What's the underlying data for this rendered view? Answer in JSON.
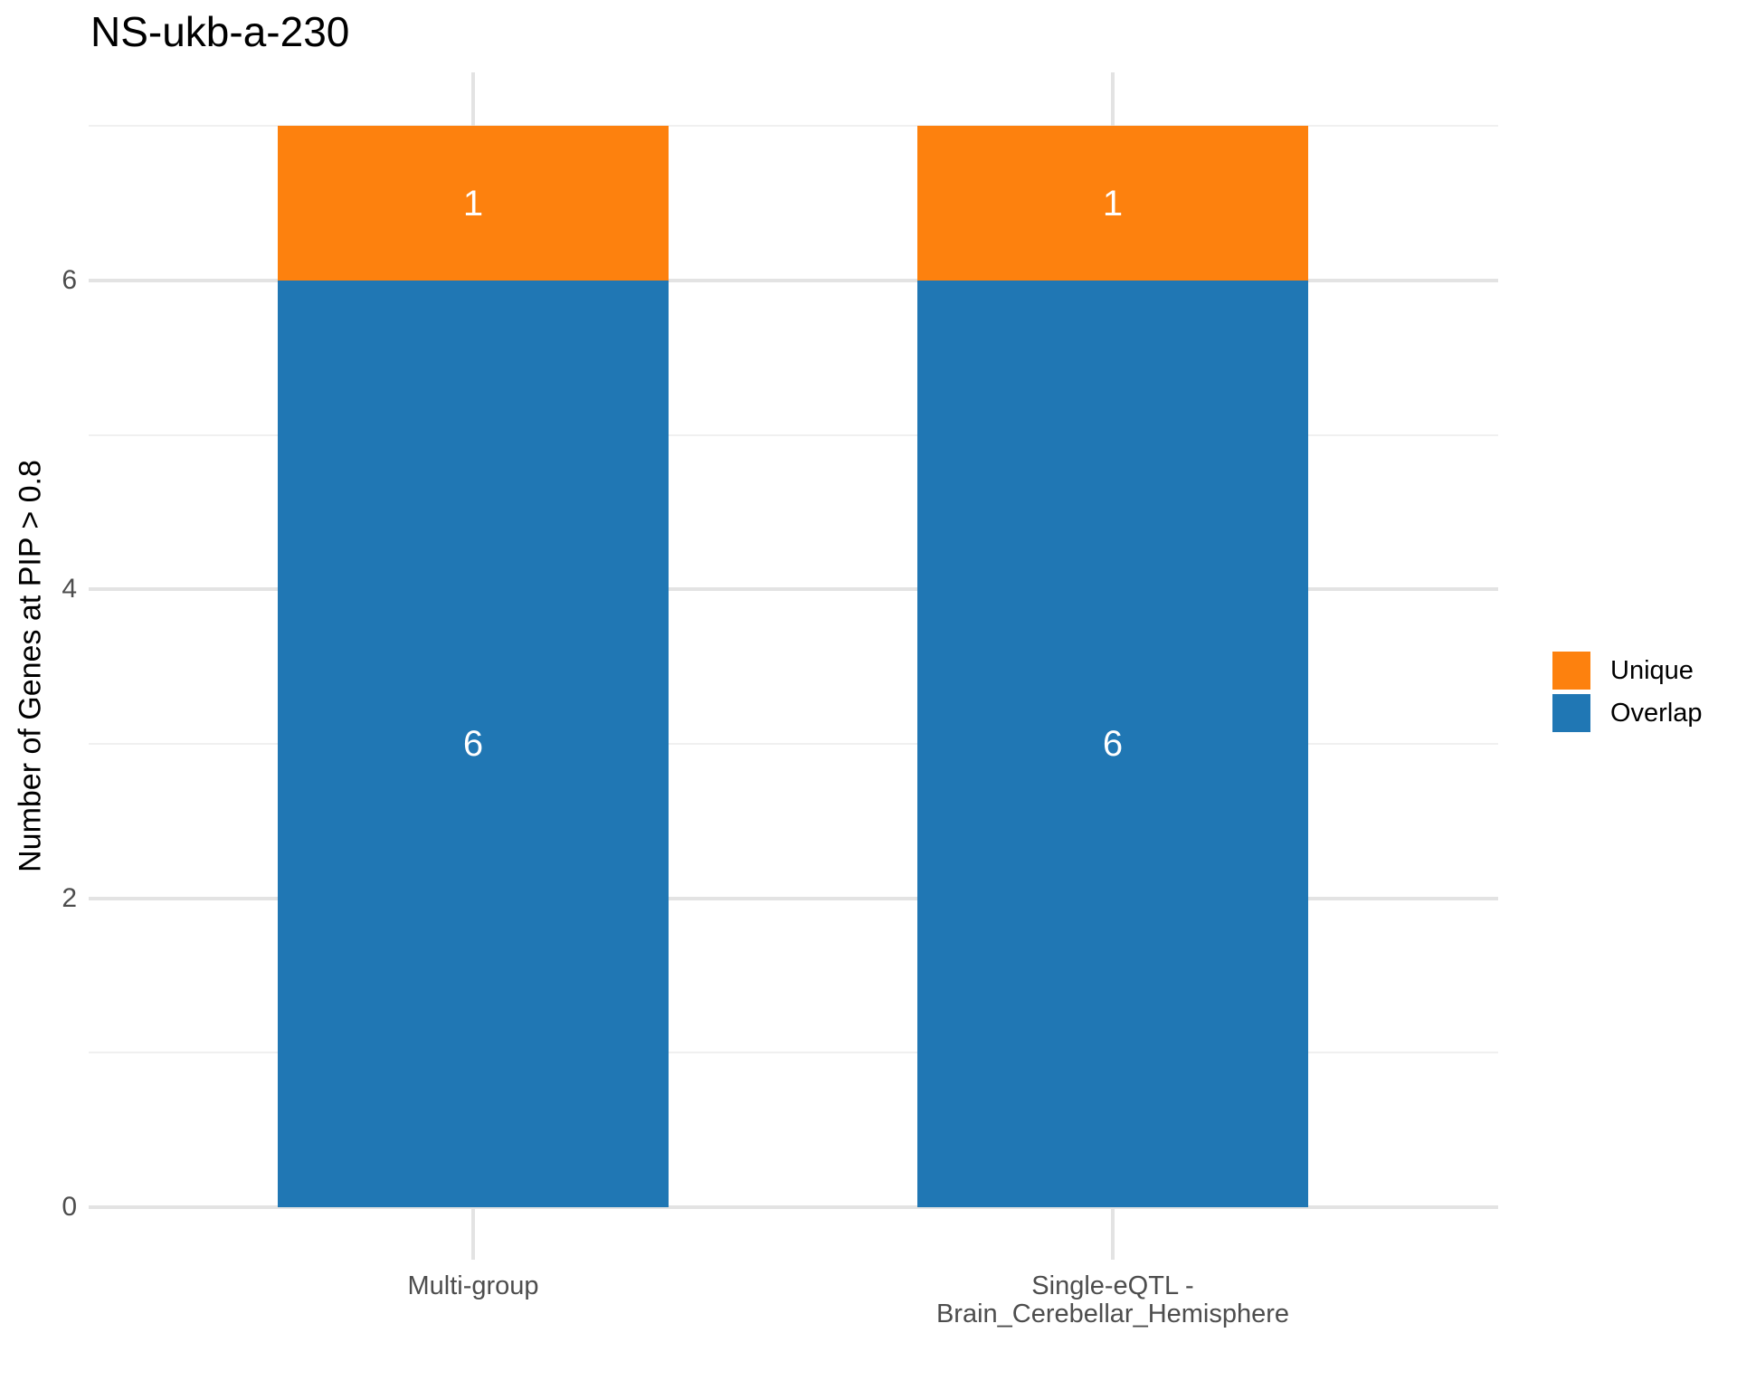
{
  "title": "NS-ukb-a-230",
  "colors": {
    "unique_orange": "#FD810E",
    "overlap_blue": "#2077B4",
    "grid_major": "#E3E3E3",
    "grid_minor": "#F0F0F0",
    "axis_text": "#4D4D4D",
    "bar_label_text": "#FFFFFF",
    "background": "#FFFFFF"
  },
  "legend": {
    "items": [
      {
        "label": "Unique",
        "color": "#FD810E"
      },
      {
        "label": "Overlap",
        "color": "#2077B4"
      }
    ]
  },
  "y_axis": {
    "title": "Number of Genes at PIP > 0.8",
    "tick_labels": [
      "0",
      "2",
      "4",
      "6"
    ]
  },
  "x_axis": {
    "labels": [
      "Multi-group",
      "Single-eQTL -\nBrain_Cerebellar_Hemisphere"
    ]
  },
  "chart_data": {
    "type": "bar",
    "stacked": true,
    "title": "NS-ukb-a-230",
    "xlabel": "",
    "ylabel": "Number of Genes at PIP > 0.8",
    "categories": [
      "Multi-group",
      "Single-eQTL -\nBrain_Cerebellar_Hemisphere"
    ],
    "series": [
      {
        "name": "Overlap",
        "color": "#2077B4",
        "values": [
          6,
          6
        ]
      },
      {
        "name": "Unique",
        "color": "#FD810E",
        "values": [
          1,
          1
        ]
      }
    ],
    "totals": [
      7,
      7
    ],
    "bar_value_labels_shown": true,
    "ylim": [
      0,
      7
    ],
    "y_major_ticks": [
      0,
      2,
      4,
      6
    ],
    "y_minor_ticks": [
      1,
      3,
      5,
      7
    ],
    "grid": true,
    "legend_position": "right",
    "legend_entries": [
      "Unique",
      "Overlap"
    ]
  }
}
